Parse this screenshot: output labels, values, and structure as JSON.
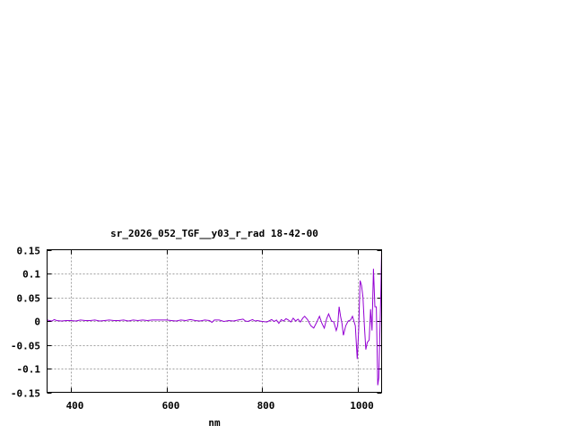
{
  "chart_data": {
    "type": "line",
    "title": "sr_2026_052_TGF__y03_r_rad 18-42-00",
    "xlabel": "nm",
    "ylabel": "",
    "xlim": [
      350,
      1050
    ],
    "ylim": [
      -0.15,
      0.15
    ],
    "grid": true,
    "x_ticks": [
      400,
      600,
      800,
      1000
    ],
    "x_tick_labels": [
      "400",
      "600",
      "800",
      "1000"
    ],
    "y_ticks": [
      0.15,
      0.1,
      0.05,
      0,
      -0.05,
      -0.1,
      -0.15
    ],
    "y_tick_labels": [
      "0.15",
      "0.1",
      "0.05",
      "0",
      "-0.05",
      "-0.1",
      "-0.15"
    ],
    "line_color": "#9400d3",
    "series": [
      {
        "x": [
          350,
          355,
          360,
          365,
          370,
          380,
          390,
          400,
          410,
          420,
          430,
          440,
          450,
          460,
          470,
          480,
          490,
          500,
          510,
          520,
          530,
          540,
          550,
          560,
          570,
          580,
          590,
          600,
          610,
          620,
          630,
          640,
          650,
          660,
          670,
          680,
          690,
          695,
          700,
          710,
          720,
          730,
          740,
          750,
          760,
          765,
          770,
          780,
          785,
          790,
          800,
          810,
          820,
          825,
          830,
          835,
          840,
          845,
          850,
          855,
          860,
          865,
          870,
          875,
          880,
          885,
          889,
          895,
          902,
          908,
          914,
          920,
          925,
          930,
          935,
          939,
          945,
          950,
          955,
          958,
          961,
          964,
          967,
          970,
          975,
          980,
          985,
          989,
          995,
          999,
          1002,
          1005,
          1008,
          1011,
          1014,
          1017,
          1020,
          1024,
          1027,
          1030,
          1033,
          1036,
          1039,
          1042,
          1044,
          1046,
          1048,
          1050
        ],
        "y": [
          0.002,
          0.001,
          0.0,
          0.003,
          0.001,
          0.0,
          0.001,
          0.001,
          0.0,
          0.002,
          0.001,
          0.001,
          0.002,
          0.0,
          0.001,
          0.002,
          0.001,
          0.001,
          0.002,
          0.0,
          0.002,
          0.001,
          0.002,
          0.001,
          0.002,
          0.002,
          0.002,
          0.002,
          0.001,
          0.0,
          0.002,
          0.001,
          0.003,
          0.001,
          0.0,
          0.002,
          0.001,
          -0.003,
          0.002,
          0.002,
          -0.001,
          0.001,
          0.0,
          0.002,
          0.004,
          0.0,
          -0.001,
          0.003,
          0.0,
          0.001,
          -0.001,
          -0.002,
          0.003,
          -0.001,
          0.002,
          -0.005,
          0.003,
          0.0,
          0.005,
          0.002,
          -0.002,
          0.006,
          0.0,
          0.004,
          -0.002,
          0.006,
          0.01,
          0.003,
          -0.01,
          -0.015,
          -0.003,
          0.01,
          -0.005,
          -0.015,
          0.005,
          0.015,
          0.0,
          -0.002,
          -0.02,
          -0.01,
          0.03,
          0.01,
          -0.005,
          -0.03,
          -0.01,
          0.0,
          0.002,
          0.01,
          -0.01,
          -0.08,
          -0.02,
          0.085,
          0.075,
          0.05,
          -0.01,
          -0.06,
          -0.045,
          -0.04,
          0.025,
          -0.02,
          0.11,
          0.03,
          0.03,
          -0.135,
          -0.12,
          -0.035,
          0.04,
          0.15
        ]
      }
    ]
  }
}
